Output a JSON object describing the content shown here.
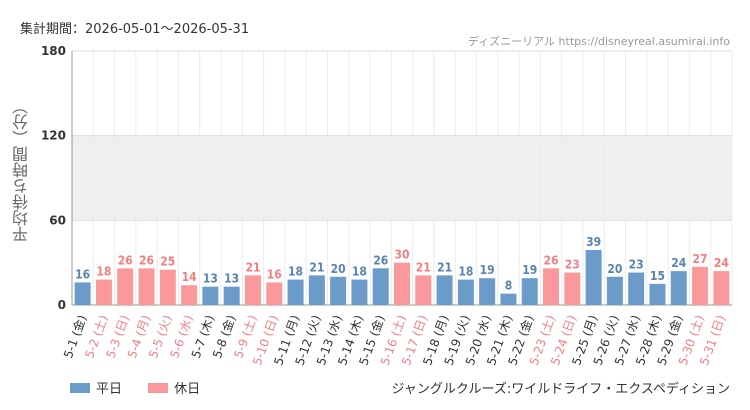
{
  "header": {
    "period": "集計期間：2026-05-01〜2026-05-31",
    "source": "ディズニーリアル https://disneyreal.asumirai.info"
  },
  "attraction": "ジャングルクルーズ:ワイルドライフ・エクスペディション",
  "legend": [
    {
      "label": "平日",
      "color": "#6b9bc8"
    },
    {
      "label": "休日",
      "color": "#fa999b"
    }
  ],
  "colors": {
    "weekday": "#6b9bc8",
    "holiday": "#fa999b",
    "weekday_label": "#5b83b0",
    "holiday_label": "#f37f82"
  },
  "chart_data": {
    "type": "bar",
    "ylabel": "平均待ち時間（分）",
    "ylim": [
      0,
      180
    ],
    "yticks": [
      "0",
      "60",
      "120",
      "180"
    ],
    "band": [
      60,
      120
    ],
    "categories": [
      "5-1 (金)",
      "5-2 (土)",
      "5-3 (日)",
      "5-4 (月)",
      "5-5 (火)",
      "5-6 (水)",
      "5-7 (木)",
      "5-8 (金)",
      "5-9 (土)",
      "5-10 (日)",
      "5-11 (月)",
      "5-12 (火)",
      "5-13 (水)",
      "5-14 (木)",
      "5-15 (金)",
      "5-16 (土)",
      "5-17 (日)",
      "5-18 (月)",
      "5-19 (火)",
      "5-20 (水)",
      "5-21 (木)",
      "5-22 (金)",
      "5-23 (土)",
      "5-24 (日)",
      "5-25 (月)",
      "5-26 (火)",
      "5-27 (水)",
      "5-28 (木)",
      "5-29 (金)",
      "5-30 (土)",
      "5-31 (日)"
    ],
    "values": [
      16,
      18,
      26,
      26,
      25,
      14,
      13,
      13,
      21,
      16,
      18,
      21,
      20,
      18,
      26,
      30,
      21,
      21,
      18,
      19,
      8,
      19,
      26,
      23,
      39,
      20,
      23,
      15,
      24,
      27,
      24
    ],
    "holiday": [
      false,
      true,
      true,
      true,
      true,
      true,
      false,
      false,
      true,
      true,
      false,
      false,
      false,
      false,
      false,
      true,
      true,
      false,
      false,
      false,
      false,
      false,
      true,
      true,
      false,
      false,
      false,
      false,
      false,
      true,
      true
    ]
  }
}
